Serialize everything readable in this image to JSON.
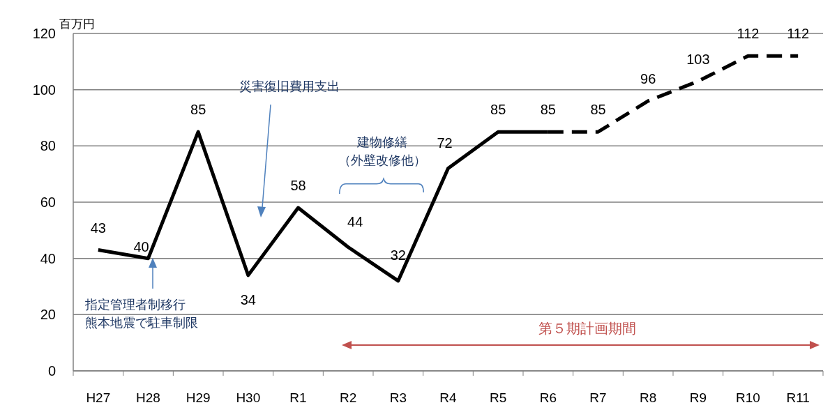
{
  "chart_data": {
    "type": "line",
    "ylabel": "百万円",
    "categories": [
      "H27",
      "H28",
      "H29",
      "H30",
      "R1",
      "R2",
      "R3",
      "R4",
      "R5",
      "R6",
      "R7",
      "R8",
      "R9",
      "R10",
      "R11"
    ],
    "series": [
      {
        "color": "#000000",
        "line_style": "solid",
        "values": [
          43,
          40,
          85,
          34,
          58,
          44,
          32,
          72,
          85,
          85,
          null,
          null,
          null,
          null,
          null
        ],
        "value_labels": [
          "43",
          "40",
          "85",
          "34",
          "58",
          "44",
          "32",
          "72",
          "85",
          "85",
          null,
          null,
          null,
          null,
          null
        ]
      },
      {
        "color": "#000000",
        "line_style": "dashed",
        "values": [
          null,
          null,
          null,
          null,
          null,
          null,
          null,
          null,
          null,
          85,
          85,
          96,
          103,
          112,
          112
        ],
        "value_labels": [
          null,
          null,
          null,
          null,
          null,
          null,
          null,
          null,
          null,
          null,
          "85",
          "96",
          "103",
          "112",
          "112"
        ]
      }
    ],
    "ylim": [
      0,
      120
    ],
    "yticks": [
      0,
      20,
      40,
      60,
      80,
      100,
      120
    ],
    "grid": "y",
    "annotations": [
      "災害復旧費用支出",
      "建物修繕",
      "（外壁改修他）",
      "指定管理者制移行",
      "熊本地震で駐車制限",
      "第５期計画期間"
    ]
  }
}
